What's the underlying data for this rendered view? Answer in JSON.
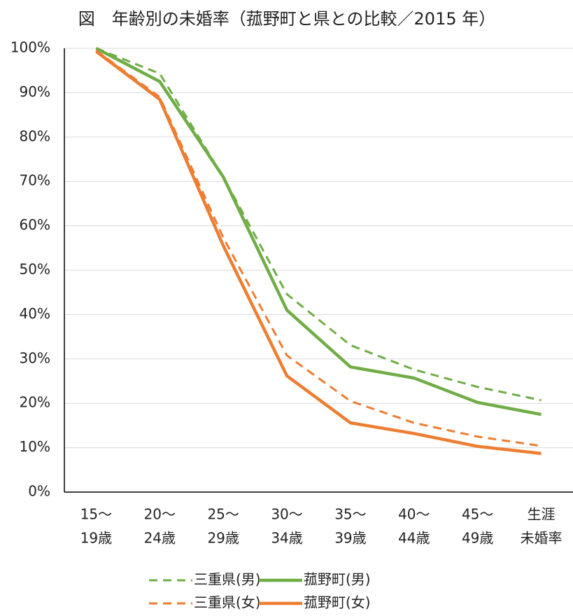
{
  "chart_data": {
    "type": "line",
    "title": "図　年齢別の未婚率（菰野町と県との比較／2015 年）",
    "categories": [
      [
        "15～",
        "19歳"
      ],
      [
        "20～",
        "24歳"
      ],
      [
        "25～",
        "29歳"
      ],
      [
        "30～",
        "34歳"
      ],
      [
        "35～",
        "39歳"
      ],
      [
        "40～",
        "44歳"
      ],
      [
        "45～",
        "49歳"
      ],
      [
        "生涯",
        "未婚率"
      ]
    ],
    "series": [
      {
        "name": "三重県(男)",
        "color": "#70ad47",
        "dashed": true,
        "values": [
          100,
          94.3,
          71,
          44.6,
          33.1,
          27.6,
          23.7,
          20.7
        ]
      },
      {
        "name": "菰野町(男)",
        "color": "#70ad47",
        "dashed": false,
        "values": [
          100,
          92.5,
          71,
          41,
          28.2,
          25.7,
          20.2,
          17.5
        ]
      },
      {
        "name": "三重県(女)",
        "color": "#ed7d31",
        "dashed": true,
        "values": [
          99.5,
          89,
          57.3,
          30.8,
          20.5,
          15.6,
          12.5,
          10.4
        ]
      },
      {
        "name": "菰野町(女)",
        "color": "#ed7d31",
        "dashed": false,
        "values": [
          99.3,
          88.5,
          55.5,
          26.2,
          15.6,
          13.2,
          10.3,
          8.7
        ]
      }
    ],
    "ylim": [
      0,
      100
    ],
    "yticks": [
      {
        "value": 0,
        "label": "0%"
      },
      {
        "value": 10,
        "label": "10%"
      },
      {
        "value": 20,
        "label": "20%"
      },
      {
        "value": 30,
        "label": "30%"
      },
      {
        "value": 40,
        "label": "40%"
      },
      {
        "value": 50,
        "label": "50%"
      },
      {
        "value": 60,
        "label": "60%"
      },
      {
        "value": 70,
        "label": "70%"
      },
      {
        "value": 80,
        "label": "80%"
      },
      {
        "value": 90,
        "label": "90%"
      },
      {
        "value": 100,
        "label": "100%"
      }
    ],
    "grid": true
  }
}
